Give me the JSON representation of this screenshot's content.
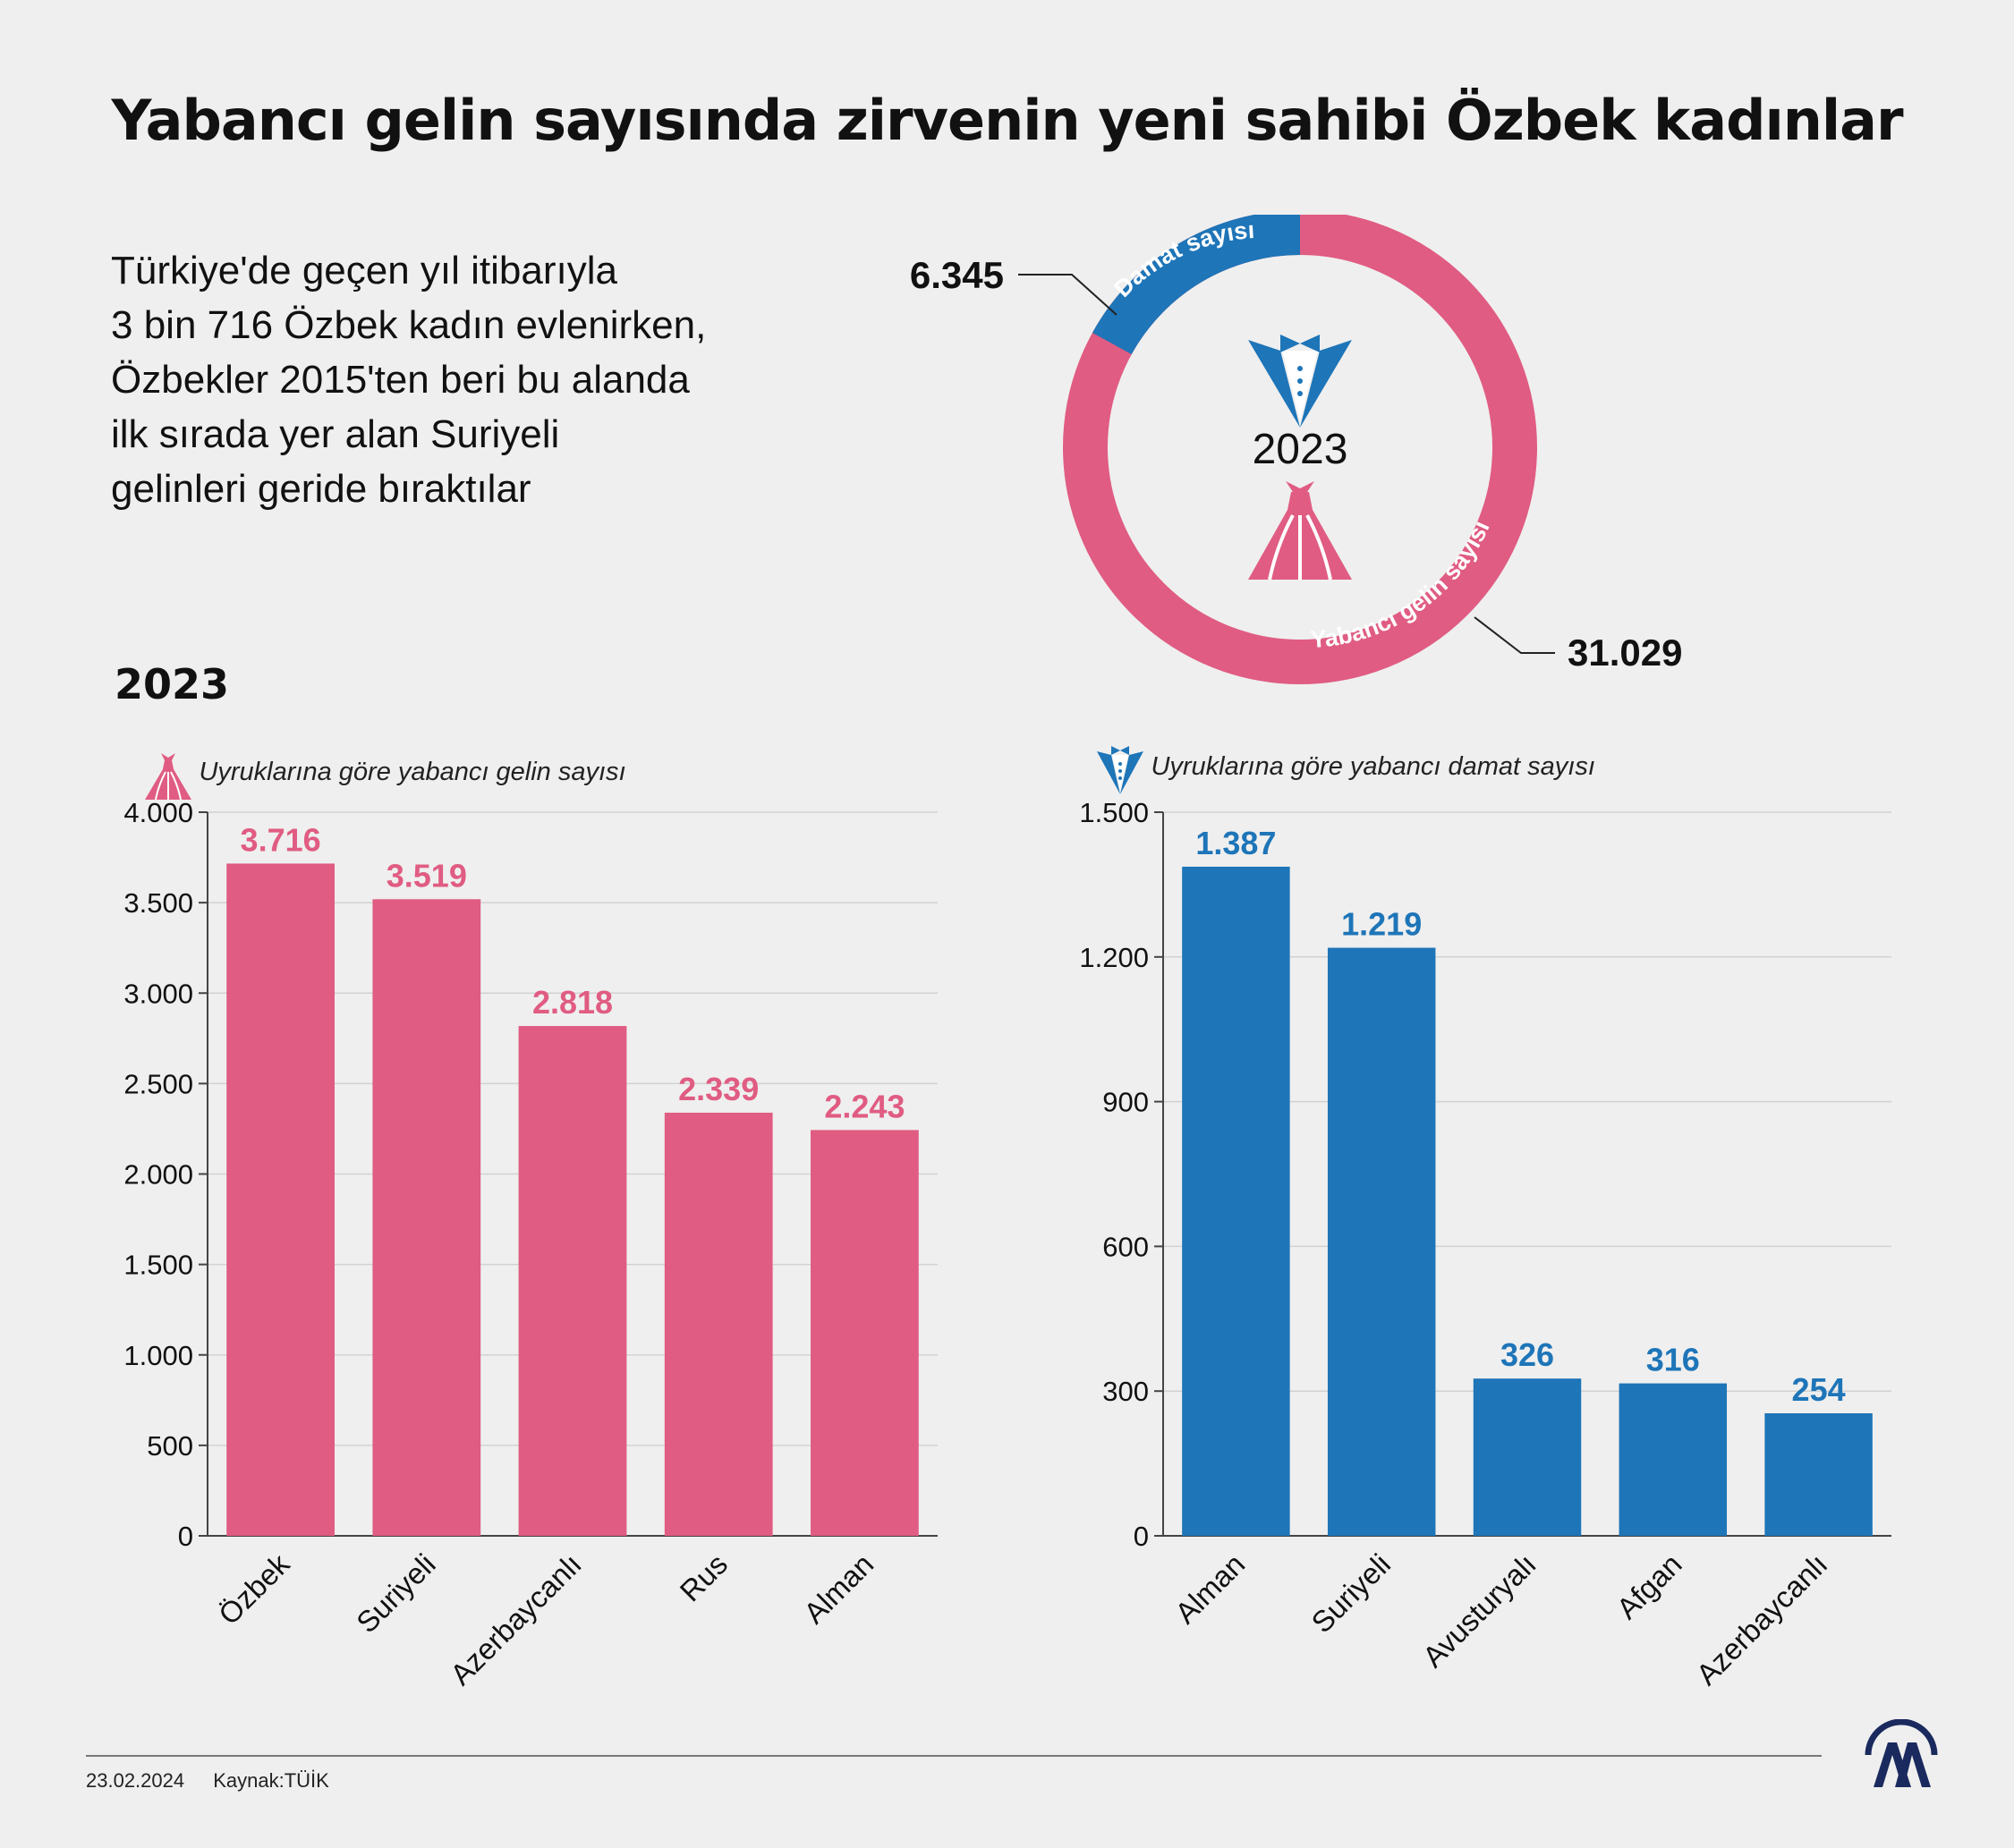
{
  "title": "Yabancı gelin sayısında zirvenin yeni sahibi Özbek kadınlar",
  "intro_lines": [
    "Türkiye'de geçen yıl itibarıyla",
    "3 bin 716 Özbek kadın evlenirken,",
    "Özbekler 2015'ten beri bu alanda",
    "ilk sırada yer alan Suriyeli",
    "gelinleri geride bıraktılar"
  ],
  "donut": {
    "year": "2023",
    "groom_label": "Damat sayısı",
    "groom_value": "6.345",
    "bride_label": "Yabancı gelin sayısı",
    "bride_value": "31.029",
    "groom_number": 6345,
    "bride_number": 31029,
    "bride_color": "#e05c82",
    "groom_color": "#1e75b8"
  },
  "year_label": "2023",
  "chart_data": [
    {
      "type": "bar",
      "title": "Uyruklarına göre yabancı gelin sayısı",
      "icon": "wedding-dress-icon",
      "color": "#e05c82",
      "categories": [
        "Özbek",
        "Suriyeli",
        "Azerbaycanlı",
        "Rus",
        "Alman"
      ],
      "values": [
        3716,
        3519,
        2818,
        2339,
        2243
      ],
      "value_labels": [
        "3.716",
        "3.519",
        "2.818",
        "2.339",
        "2.243"
      ],
      "ylim": [
        0,
        4000
      ],
      "yticks": [
        0,
        500,
        1000,
        1500,
        2000,
        2500,
        3000,
        3500,
        4000
      ],
      "ytick_labels": [
        "0",
        "500",
        "1.000",
        "1.500",
        "2.000",
        "2.500",
        "3.000",
        "3.500",
        "4.000"
      ],
      "grid": true
    },
    {
      "type": "bar",
      "title": "Uyruklarına göre yabancı damat sayısı",
      "icon": "tuxedo-icon",
      "color": "#1e75b8",
      "categories": [
        "Alman",
        "Suriyeli",
        "Avusturyalı",
        "Afgan",
        "Azerbaycanlı"
      ],
      "values": [
        1387,
        1219,
        326,
        316,
        254
      ],
      "value_labels": [
        "1.387",
        "1.219",
        "326",
        "316",
        "254"
      ],
      "ylim": [
        0,
        1500
      ],
      "yticks": [
        0,
        300,
        600,
        900,
        1200,
        1500
      ],
      "ytick_labels": [
        "0",
        "300",
        "600",
        "900",
        "1.200",
        "1.500"
      ],
      "grid": true
    }
  ],
  "footer": {
    "date": "23.02.2024",
    "source": "Kaynak:TÜİK",
    "logo_text": "AA"
  }
}
